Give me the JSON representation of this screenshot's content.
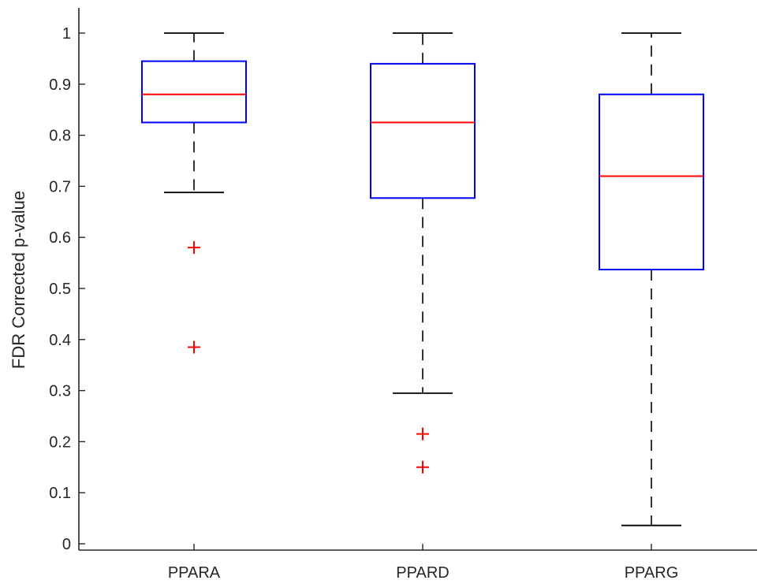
{
  "chart_data": {
    "type": "box",
    "title": "",
    "xlabel": "",
    "ylabel": "FDR Corrected p-value",
    "ylim": [
      0,
      1
    ],
    "yticks": [
      0,
      0.1,
      0.2,
      0.3,
      0.4,
      0.5,
      0.6,
      0.7,
      0.8,
      0.9,
      1
    ],
    "ytick_labels": [
      "0",
      "0.1",
      "0.2",
      "0.3",
      "0.4",
      "0.5",
      "0.6",
      "0.7",
      "0.8",
      "0.9",
      "1"
    ],
    "categories": [
      "PPARA",
      "PPARD",
      "PPARG"
    ],
    "boxes": [
      {
        "name": "PPARA",
        "whisker_low": 0.688,
        "q1": 0.825,
        "median": 0.88,
        "q3": 0.945,
        "whisker_high": 1.0,
        "outliers": [
          0.58,
          0.385
        ]
      },
      {
        "name": "PPARD",
        "whisker_low": 0.295,
        "q1": 0.677,
        "median": 0.825,
        "q3": 0.94,
        "whisker_high": 1.0,
        "outliers": [
          0.215,
          0.15
        ]
      },
      {
        "name": "PPARG",
        "whisker_low": 0.036,
        "q1": 0.537,
        "median": 0.72,
        "q3": 0.88,
        "whisker_high": 1.0,
        "outliers": []
      }
    ],
    "grid": false,
    "legend": "none",
    "colors": {
      "box": "#0000ff",
      "median": "#ff0000",
      "whisker": "#000000",
      "outlier": "#ff0000",
      "axis": "#262626"
    }
  }
}
